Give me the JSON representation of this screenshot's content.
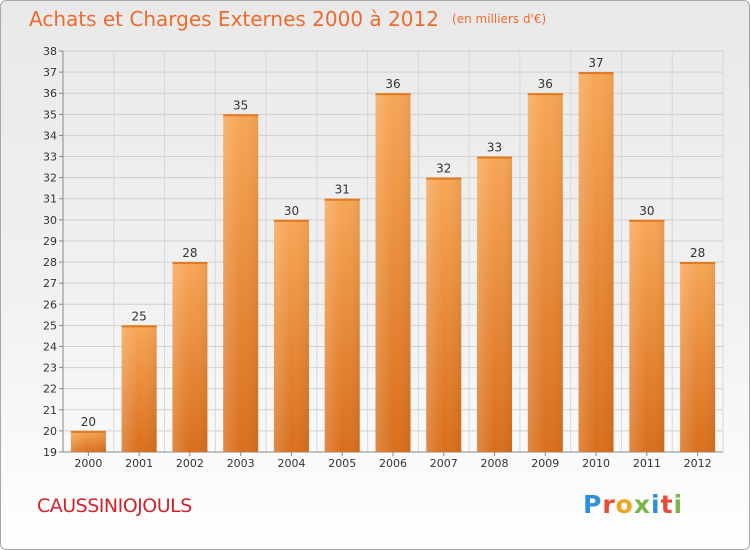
{
  "title": {
    "main": "Achats et Charges Externes 2000 à 2012",
    "unit": "(en milliers d'€)"
  },
  "commune": "CAUSSINIOJOULS",
  "logo": {
    "text": "Proxiti",
    "colors": [
      "#2f8fd8",
      "#e94b35",
      "#f1a31f",
      "#7ab648",
      "#2f8fd8",
      "#e94b35",
      "#7ab648"
    ]
  },
  "chart_data": {
    "type": "bar",
    "title": "Achats et Charges Externes 2000 à 2012",
    "subtitle": "(en milliers d'€)",
    "xlabel": "",
    "ylabel": "",
    "categories": [
      "2000",
      "2001",
      "2002",
      "2003",
      "2004",
      "2005",
      "2006",
      "2007",
      "2008",
      "2009",
      "2010",
      "2011",
      "2012"
    ],
    "values": [
      20,
      25,
      28,
      35,
      30,
      31,
      36,
      32,
      33,
      36,
      37,
      30,
      28
    ],
    "ylim": [
      19,
      38
    ],
    "yticks": [
      19,
      20,
      21,
      22,
      23,
      24,
      25,
      26,
      27,
      28,
      29,
      30,
      31,
      32,
      33,
      34,
      35,
      36,
      37,
      38
    ],
    "grid": true,
    "legend": "none",
    "bar_color": "#f0862f",
    "data_labels": true
  }
}
